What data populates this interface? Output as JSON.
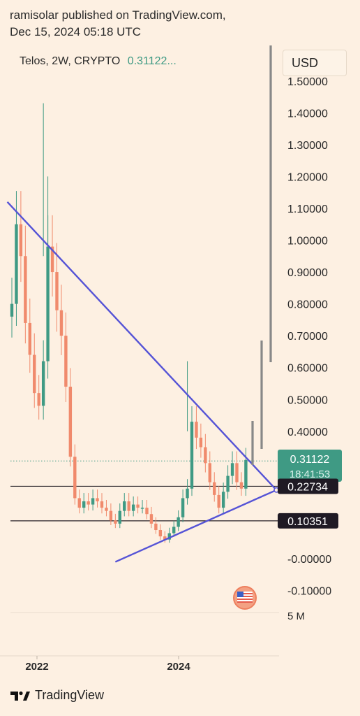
{
  "header": {
    "publisher": "ramisolar published on TradingView.com,",
    "timestamp": "Dec 15, 2024 05:18 UTC"
  },
  "symbol": {
    "name": "Telos, 2W, CRYPTO",
    "last_price": "0.31122..."
  },
  "currency_button": "USD",
  "footer": {
    "brand": "TradingView"
  },
  "colors": {
    "background": "#fdf0e2",
    "up": "#3f9a84",
    "down": "#f08a6c",
    "trendline": "#5553d6",
    "price_badge": "#3f9a84",
    "level_badge": "#1f1a24"
  },
  "chart_data": {
    "type": "candlestick",
    "x_labels": [
      "2022",
      "2024"
    ],
    "y_ticks": [
      1.5,
      1.4,
      1.3,
      1.2,
      1.1,
      1.0,
      0.9,
      0.8,
      0.7,
      0.6,
      0.5,
      0.4,
      -0.0,
      -0.1
    ],
    "y_tick_labels": [
      "1.50000",
      "1.40000",
      "1.30000",
      "1.20000",
      "1.10000",
      "1.00000",
      "0.90000",
      "0.80000",
      "0.70000",
      "0.60000",
      "0.50000",
      "0.40000",
      "-0.00000",
      "-0.10000"
    ],
    "ylim": [
      -0.18,
      1.52
    ],
    "current_price": {
      "value": 0.31122,
      "label": "0.31122",
      "countdown": "18:41:53"
    },
    "horizontal_levels": [
      {
        "value": 0.22734,
        "label": "0.22734"
      },
      {
        "value": 0.10351,
        "label": "0.10351"
      }
    ],
    "volume_label": "5 M",
    "close_series": [
      0.8,
      1.05,
      0.95,
      0.74,
      0.64,
      0.52,
      0.48,
      0.62,
      0.98,
      0.9,
      0.78,
      0.7,
      0.54,
      0.32,
      0.19,
      0.16,
      0.18,
      0.17,
      0.19,
      0.18,
      0.16,
      0.15,
      0.12,
      0.11,
      0.15,
      0.18,
      0.15,
      0.17,
      0.16,
      0.16,
      0.14,
      0.11,
      0.09,
      0.07,
      0.06,
      0.08,
      0.1,
      0.13,
      0.19,
      0.22,
      0.43,
      0.38,
      0.35,
      0.3,
      0.24,
      0.2,
      0.16,
      0.21,
      0.26,
      0.3,
      0.24,
      0.22,
      0.31
    ],
    "trendlines": [
      {
        "name": "descending",
        "from": {
          "bar": -1,
          "value": 1.12
        },
        "to": {
          "bar": 56,
          "value": 0.22
        }
      },
      {
        "name": "ascending",
        "from": {
          "bar": 23,
          "value": -0.01
        },
        "to": {
          "bar": 56,
          "value": 0.22
        }
      }
    ]
  }
}
